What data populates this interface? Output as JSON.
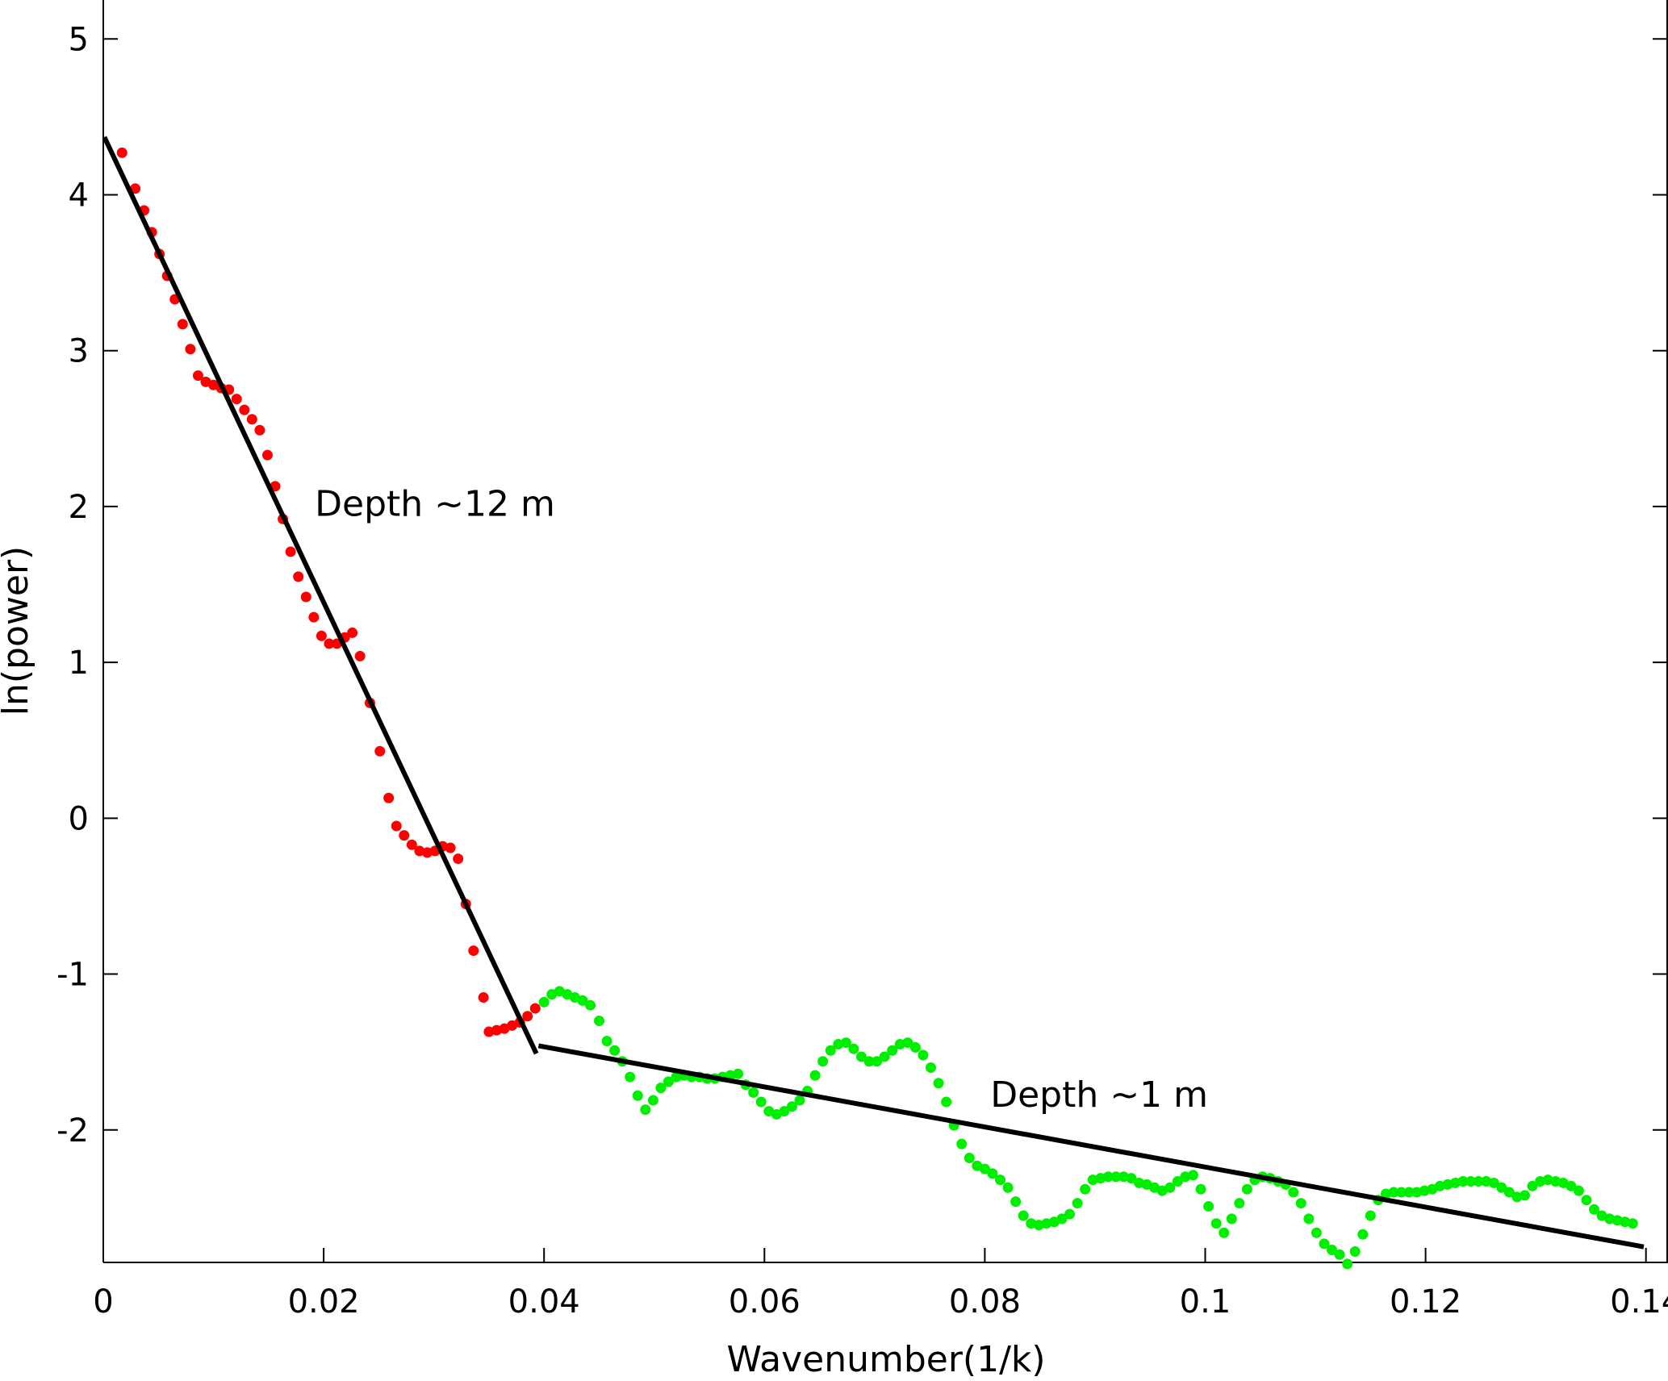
{
  "chart_data": {
    "type": "scatter",
    "title": "",
    "xlabel": "Wavenumber(1/k)",
    "ylabel": "ln(power)",
    "xlim": [
      0,
      0.142
    ],
    "ylim": [
      -2.85,
      5.25
    ],
    "xticks": [
      0,
      0.02,
      0.04,
      0.06,
      0.08,
      0.1,
      0.12,
      0.14
    ],
    "xtick_labels": [
      "0",
      "0.02",
      "0.04",
      "0.06",
      "0.08",
      "0.1",
      "0.12",
      "0.14"
    ],
    "yticks": [
      -2,
      -1,
      0,
      1,
      2,
      3,
      4,
      5
    ],
    "ytick_labels": [
      "-2",
      "-1",
      "0",
      "1",
      "2",
      "3",
      "4",
      "5"
    ],
    "grid": false,
    "colors": {
      "deep": "#ff0000",
      "shallow": "#00ee00",
      "fit": "#000000"
    },
    "series": [
      {
        "color": "#ff0000",
        "points": [
          [
            0.0017,
            4.27
          ],
          [
            0.0029,
            4.04
          ],
          [
            0.0037,
            3.9
          ],
          [
            0.0044,
            3.76
          ],
          [
            0.0051,
            3.62
          ],
          [
            0.0058,
            3.48
          ],
          [
            0.0065,
            3.33
          ],
          [
            0.0072,
            3.17
          ],
          [
            0.0079,
            3.01
          ],
          [
            0.0086,
            2.84
          ],
          [
            0.0093,
            2.8
          ],
          [
            0.01,
            2.78
          ],
          [
            0.0107,
            2.76
          ],
          [
            0.0114,
            2.75
          ],
          [
            0.0121,
            2.69
          ],
          [
            0.0128,
            2.62
          ],
          [
            0.0135,
            2.56
          ],
          [
            0.0142,
            2.49
          ],
          [
            0.0149,
            2.33
          ],
          [
            0.0156,
            2.13
          ],
          [
            0.0163,
            1.92
          ],
          [
            0.017,
            1.71
          ],
          [
            0.0177,
            1.55
          ],
          [
            0.0184,
            1.42
          ],
          [
            0.0191,
            1.29
          ],
          [
            0.0198,
            1.17
          ],
          [
            0.0205,
            1.12
          ],
          [
            0.0212,
            1.12
          ],
          [
            0.0219,
            1.16
          ],
          [
            0.0226,
            1.19
          ],
          [
            0.0233,
            1.04
          ],
          [
            0.0242,
            0.74
          ],
          [
            0.0251,
            0.43
          ],
          [
            0.0259,
            0.13
          ],
          [
            0.0266,
            -0.05
          ],
          [
            0.0273,
            -0.11
          ],
          [
            0.028,
            -0.17
          ],
          [
            0.0287,
            -0.21
          ],
          [
            0.0294,
            -0.22
          ],
          [
            0.0301,
            -0.21
          ],
          [
            0.0308,
            -0.18
          ],
          [
            0.0315,
            -0.19
          ],
          [
            0.0322,
            -0.26
          ],
          [
            0.0329,
            -0.55
          ],
          [
            0.0336,
            -0.85
          ],
          [
            0.0345,
            -1.15
          ],
          [
            0.035,
            -1.37
          ],
          [
            0.0357,
            -1.36
          ],
          [
            0.0364,
            -1.35
          ],
          [
            0.0371,
            -1.33
          ],
          [
            0.0378,
            -1.31
          ],
          [
            0.0385,
            -1.27
          ],
          [
            0.0392,
            -1.22
          ]
        ]
      },
      {
        "color": "#00ee00",
        "points": [
          [
            0.04,
            -1.18
          ],
          [
            0.0407,
            -1.13
          ],
          [
            0.0414,
            -1.11
          ],
          [
            0.0421,
            -1.13
          ],
          [
            0.0428,
            -1.15
          ],
          [
            0.0435,
            -1.17
          ],
          [
            0.0442,
            -1.2
          ],
          [
            0.045,
            -1.3
          ],
          [
            0.0457,
            -1.43
          ],
          [
            0.0464,
            -1.49
          ],
          [
            0.0471,
            -1.56
          ],
          [
            0.0478,
            -1.66
          ],
          [
            0.0485,
            -1.78
          ],
          [
            0.0492,
            -1.87
          ],
          [
            0.0499,
            -1.81
          ],
          [
            0.0506,
            -1.73
          ],
          [
            0.0513,
            -1.69
          ],
          [
            0.052,
            -1.66
          ],
          [
            0.0527,
            -1.65
          ],
          [
            0.0534,
            -1.66
          ],
          [
            0.0541,
            -1.66
          ],
          [
            0.0548,
            -1.67
          ],
          [
            0.0555,
            -1.67
          ],
          [
            0.0562,
            -1.66
          ],
          [
            0.0569,
            -1.65
          ],
          [
            0.0576,
            -1.64
          ],
          [
            0.0583,
            -1.71
          ],
          [
            0.059,
            -1.76
          ],
          [
            0.0597,
            -1.82
          ],
          [
            0.0604,
            -1.88
          ],
          [
            0.0611,
            -1.9
          ],
          [
            0.0618,
            -1.88
          ],
          [
            0.0625,
            -1.85
          ],
          [
            0.0632,
            -1.81
          ],
          [
            0.0639,
            -1.75
          ],
          [
            0.0646,
            -1.65
          ],
          [
            0.0653,
            -1.56
          ],
          [
            0.066,
            -1.49
          ],
          [
            0.0667,
            -1.45
          ],
          [
            0.0674,
            -1.44
          ],
          [
            0.0681,
            -1.48
          ],
          [
            0.0688,
            -1.53
          ],
          [
            0.0695,
            -1.56
          ],
          [
            0.0702,
            -1.56
          ],
          [
            0.0709,
            -1.53
          ],
          [
            0.0716,
            -1.49
          ],
          [
            0.0723,
            -1.45
          ],
          [
            0.073,
            -1.44
          ],
          [
            0.0737,
            -1.47
          ],
          [
            0.0744,
            -1.52
          ],
          [
            0.0751,
            -1.6
          ],
          [
            0.0758,
            -1.7
          ],
          [
            0.0765,
            -1.82
          ],
          [
            0.0772,
            -1.97
          ],
          [
            0.0779,
            -2.09
          ],
          [
            0.0786,
            -2.18
          ],
          [
            0.0793,
            -2.23
          ],
          [
            0.08,
            -2.25
          ],
          [
            0.0807,
            -2.28
          ],
          [
            0.0814,
            -2.32
          ],
          [
            0.0821,
            -2.37
          ],
          [
            0.0828,
            -2.46
          ],
          [
            0.0835,
            -2.55
          ],
          [
            0.0842,
            -2.6
          ],
          [
            0.0849,
            -2.61
          ],
          [
            0.0856,
            -2.6
          ],
          [
            0.0863,
            -2.59
          ],
          [
            0.087,
            -2.57
          ],
          [
            0.0877,
            -2.54
          ],
          [
            0.0884,
            -2.47
          ],
          [
            0.0891,
            -2.38
          ],
          [
            0.0898,
            -2.32
          ],
          [
            0.0905,
            -2.31
          ],
          [
            0.0912,
            -2.3
          ],
          [
            0.0919,
            -2.3
          ],
          [
            0.0926,
            -2.3
          ],
          [
            0.0933,
            -2.31
          ],
          [
            0.094,
            -2.34
          ],
          [
            0.0947,
            -2.35
          ],
          [
            0.0954,
            -2.37
          ],
          [
            0.0961,
            -2.39
          ],
          [
            0.0968,
            -2.37
          ],
          [
            0.0975,
            -2.33
          ],
          [
            0.0982,
            -2.3
          ],
          [
            0.0989,
            -2.29
          ],
          [
            0.0996,
            -2.38
          ],
          [
            0.1003,
            -2.49
          ],
          [
            0.101,
            -2.6
          ],
          [
            0.1017,
            -2.66
          ],
          [
            0.1024,
            -2.57
          ],
          [
            0.1031,
            -2.47
          ],
          [
            0.1038,
            -2.38
          ],
          [
            0.1045,
            -2.32
          ],
          [
            0.1052,
            -2.3
          ],
          [
            0.1059,
            -2.31
          ],
          [
            0.1066,
            -2.33
          ],
          [
            0.1073,
            -2.35
          ],
          [
            0.108,
            -2.4
          ],
          [
            0.1087,
            -2.47
          ],
          [
            0.1094,
            -2.57
          ],
          [
            0.1101,
            -2.66
          ],
          [
            0.1108,
            -2.73
          ],
          [
            0.1115,
            -2.77
          ],
          [
            0.1122,
            -2.8
          ],
          [
            0.1129,
            -2.86
          ],
          [
            0.1136,
            -2.78
          ],
          [
            0.1143,
            -2.67
          ],
          [
            0.115,
            -2.55
          ],
          [
            0.1157,
            -2.45
          ],
          [
            0.1164,
            -2.41
          ],
          [
            0.1171,
            -2.4
          ],
          [
            0.1178,
            -2.4
          ],
          [
            0.1185,
            -2.4
          ],
          [
            0.1192,
            -2.4
          ],
          [
            0.1199,
            -2.39
          ],
          [
            0.1206,
            -2.38
          ],
          [
            0.1213,
            -2.36
          ],
          [
            0.122,
            -2.35
          ],
          [
            0.1227,
            -2.34
          ],
          [
            0.1234,
            -2.33
          ],
          [
            0.1241,
            -2.33
          ],
          [
            0.1248,
            -2.33
          ],
          [
            0.1255,
            -2.33
          ],
          [
            0.1262,
            -2.34
          ],
          [
            0.1269,
            -2.37
          ],
          [
            0.1276,
            -2.4
          ],
          [
            0.1283,
            -2.43
          ],
          [
            0.129,
            -2.42
          ],
          [
            0.1297,
            -2.36
          ],
          [
            0.1304,
            -2.33
          ],
          [
            0.1311,
            -2.32
          ],
          [
            0.1318,
            -2.33
          ],
          [
            0.1325,
            -2.34
          ],
          [
            0.1332,
            -2.36
          ],
          [
            0.1339,
            -2.39
          ],
          [
            0.1346,
            -2.45
          ],
          [
            0.1353,
            -2.51
          ],
          [
            0.136,
            -2.55
          ],
          [
            0.1367,
            -2.57
          ],
          [
            0.1374,
            -2.58
          ],
          [
            0.1381,
            -2.59
          ],
          [
            0.1388,
            -2.6
          ]
        ]
      }
    ],
    "fit_lines": [
      {
        "x": [
          0.0001,
          0.0393
        ],
        "y": [
          4.37,
          -1.51
        ]
      },
      {
        "x": [
          0.0395,
          0.1398
        ],
        "y": [
          -1.46,
          -2.75
        ]
      }
    ],
    "annotations": [
      {
        "text": "Depth ~12 m",
        "x": 0.0192,
        "y": 1.94
      },
      {
        "text": "Depth ~1 m",
        "x": 0.0805,
        "y": -1.85
      }
    ]
  }
}
